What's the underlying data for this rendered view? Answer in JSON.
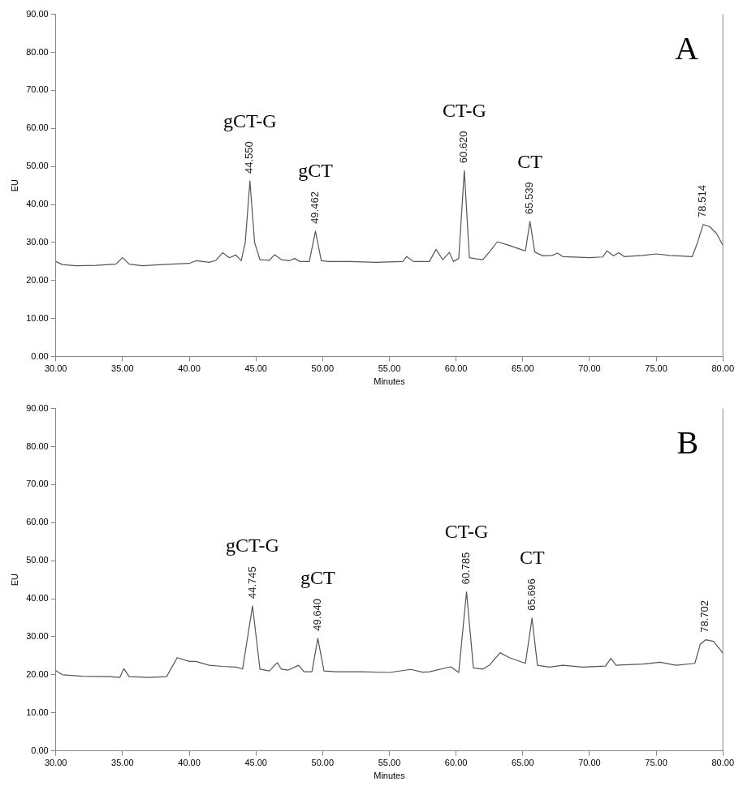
{
  "chart_data": [
    {
      "type": "line",
      "xlabel": "Minutes",
      "ylabel": "EU",
      "xlim": [
        30,
        80
      ],
      "ylim": [
        0,
        90
      ],
      "xticks": [
        {
          "value": 30,
          "label": "30.00"
        },
        {
          "value": 35,
          "label": "35.00"
        },
        {
          "value": 40,
          "label": "40.00"
        },
        {
          "value": 45,
          "label": "45.00"
        },
        {
          "value": 50,
          "label": "50.00"
        },
        {
          "value": 55,
          "label": "55.00"
        },
        {
          "value": 60,
          "label": "60.00"
        },
        {
          "value": 65,
          "label": "65.00"
        },
        {
          "value": 70,
          "label": "70.00"
        },
        {
          "value": 75,
          "label": "75.00"
        },
        {
          "value": 80,
          "label": "80.00"
        }
      ],
      "yticks": [
        {
          "value": 0,
          "label": "0.00"
        },
        {
          "value": 10,
          "label": "10.00"
        },
        {
          "value": 20,
          "label": "20.00"
        },
        {
          "value": 30,
          "label": "30.00"
        },
        {
          "value": 40,
          "label": "40.00"
        },
        {
          "value": 50,
          "label": "50.00"
        },
        {
          "value": 60,
          "label": "60.00"
        },
        {
          "value": 70,
          "label": "70.00"
        },
        {
          "value": 80,
          "label": "80.00"
        },
        {
          "value": 90,
          "label": "90.00"
        }
      ],
      "grid": false,
      "legend": false,
      "marker": "none",
      "line_style": "solid",
      "series": [
        {
          "color": "#555555",
          "x": [
            30,
            30.5,
            31.5,
            33,
            34.5,
            35,
            35.5,
            36.5,
            38,
            40,
            40.5,
            41.5,
            42,
            42.5,
            43,
            43.5,
            43.9,
            44.2,
            44.55,
            44.9,
            45.3,
            46,
            46.4,
            46.9,
            47.5,
            47.9,
            48.3,
            49,
            49.462,
            49.9,
            50.5,
            52,
            54,
            55,
            56,
            56.3,
            56.8,
            58,
            58.5,
            59,
            59.5,
            59.8,
            60.2,
            60.62,
            61,
            61.5,
            62,
            62.5,
            63.1,
            64,
            65,
            65.2,
            65.539,
            65.9,
            66.5,
            67.2,
            67.6,
            68,
            70,
            71,
            71.3,
            71.8,
            72.2,
            72.6,
            74,
            75,
            76,
            77.7,
            78.1,
            78.514,
            79,
            79.5,
            80
          ],
          "values": [
            25.0,
            24.2,
            23.9,
            24.0,
            24.3,
            26.0,
            24.3,
            23.9,
            24.2,
            24.5,
            25.2,
            24.8,
            25.3,
            27.3,
            26.0,
            26.7,
            25.2,
            30,
            46.2,
            30,
            25.5,
            25.3,
            26.8,
            25.5,
            25.2,
            25.8,
            25.0,
            25.0,
            33.0,
            25.2,
            25.0,
            25.0,
            24.8,
            24.9,
            25.0,
            26.3,
            25.0,
            25.0,
            28.2,
            25.5,
            27.4,
            25.0,
            25.8,
            48.9,
            26.0,
            25.7,
            25.5,
            27.5,
            30.2,
            29.2,
            28.0,
            27.8,
            35.5,
            27.5,
            26.5,
            26.6,
            27.2,
            26.3,
            26.0,
            26.2,
            27.8,
            26.5,
            27.3,
            26.3,
            26.6,
            27.0,
            26.6,
            26.3,
            30,
            34.7,
            34.2,
            32.5,
            29.3
          ]
        }
      ],
      "annotations": [
        "A",
        "gCT-G",
        "gCT",
        "CT-G",
        "CT",
        {
          "text": "44.550",
          "x": 44.55,
          "y": 46.2
        },
        {
          "text": "49.462",
          "x": 49.462,
          "y": 33.0
        },
        {
          "text": "60.620",
          "x": 60.62,
          "y": 48.9
        },
        {
          "text": "65.539",
          "x": 65.539,
          "y": 35.5
        },
        {
          "text": "78.514",
          "x": 78.514,
          "y": 34.7
        }
      ]
    },
    {
      "type": "line",
      "xlabel": "Minutes",
      "ylabel": "EU",
      "xlim": [
        30,
        80
      ],
      "ylim": [
        0,
        90
      ],
      "xticks": [
        {
          "value": 30,
          "label": "30.00"
        },
        {
          "value": 35,
          "label": "35.00"
        },
        {
          "value": 40,
          "label": "40.00"
        },
        {
          "value": 45,
          "label": "45.00"
        },
        {
          "value": 50,
          "label": "50.00"
        },
        {
          "value": 55,
          "label": "55.00"
        },
        {
          "value": 60,
          "label": "60.00"
        },
        {
          "value": 65,
          "label": "65.00"
        },
        {
          "value": 70,
          "label": "70.00"
        },
        {
          "value": 75,
          "label": "75.00"
        },
        {
          "value": 80,
          "label": "80.00"
        }
      ],
      "yticks": [
        {
          "value": 0,
          "label": "0.00"
        },
        {
          "value": 10,
          "label": "10.00"
        },
        {
          "value": 20,
          "label": "20.00"
        },
        {
          "value": 30,
          "label": "30.00"
        },
        {
          "value": 40,
          "label": "40.00"
        },
        {
          "value": 50,
          "label": "50.00"
        },
        {
          "value": 60,
          "label": "60.00"
        },
        {
          "value": 70,
          "label": "70.00"
        },
        {
          "value": 80,
          "label": "80.00"
        },
        {
          "value": 90,
          "label": "90.00"
        }
      ],
      "grid": false,
      "legend": false,
      "marker": "none",
      "line_style": "solid",
      "series": [
        {
          "color": "#555555",
          "x": [
            30,
            30.5,
            32,
            34,
            34.8,
            35.1,
            35.5,
            37,
            38.3,
            39.1,
            40,
            40.5,
            41.5,
            42.5,
            43.5,
            44,
            44.745,
            45.3,
            46,
            46.6,
            46.9,
            47.4,
            48.2,
            48.6,
            49.2,
            49.64,
            50.1,
            51,
            53,
            55,
            56.6,
            57.5,
            58,
            59.6,
            60.2,
            60.785,
            61.3,
            62,
            62.5,
            63.3,
            64,
            65.2,
            65.696,
            66.1,
            67,
            68,
            69.5,
            71.2,
            71.6,
            72,
            74,
            75.3,
            76.5,
            77.9,
            78.3,
            78.702,
            79.3,
            80
          ],
          "values": [
            21.1,
            20.0,
            19.6,
            19.5,
            19.3,
            21.6,
            19.5,
            19.3,
            19.5,
            24.5,
            23.5,
            23.5,
            22.5,
            22.2,
            22.0,
            21.5,
            38.1,
            21.5,
            21.0,
            23.2,
            21.5,
            21.2,
            22.5,
            20.8,
            20.8,
            29.6,
            21.0,
            20.8,
            20.8,
            20.6,
            21.4,
            20.7,
            20.8,
            22.1,
            20.6,
            41.8,
            21.8,
            21.5,
            22.5,
            25.8,
            24.5,
            23.0,
            34.9,
            22.5,
            22.0,
            22.5,
            22.0,
            22.3,
            24.3,
            22.5,
            22.8,
            23.3,
            22.5,
            23.0,
            28.0,
            29.2,
            28.8,
            25.7
          ]
        }
      ],
      "annotations": [
        "B",
        "gCT-G",
        "gCT",
        "CT-G",
        "CT",
        {
          "text": "44.745",
          "x": 44.745,
          "y": 38.1
        },
        {
          "text": "49.640",
          "x": 49.64,
          "y": 29.6
        },
        {
          "text": "60.785",
          "x": 60.785,
          "y": 41.8
        },
        {
          "text": "65.696",
          "x": 65.696,
          "y": 34.9
        },
        {
          "text": "78.702",
          "x": 78.702,
          "y": 29.2
        }
      ]
    }
  ]
}
